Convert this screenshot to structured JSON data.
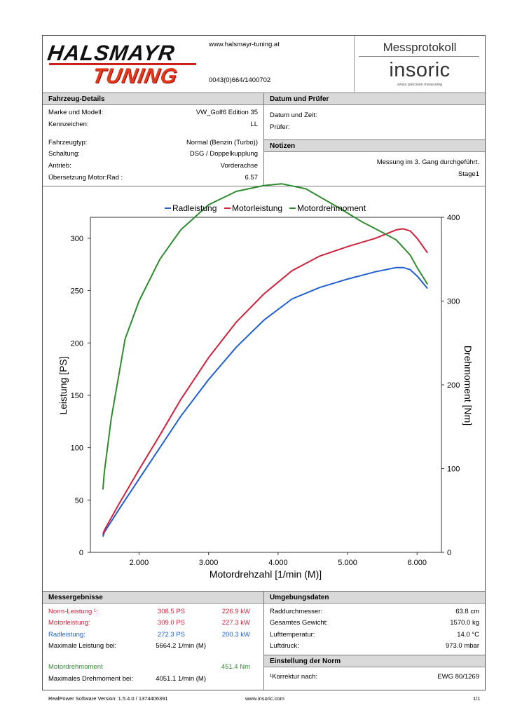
{
  "header": {
    "logo_line1": "HALSMAYR",
    "logo_line2": "TUNING",
    "website": "www.halsmayr-tuning.at",
    "phone": "0043(0)664/1400702",
    "protocol_title": "Messprotokoll",
    "brand": "insoric",
    "brand_tagline": "swiss precision measuring"
  },
  "vehicle": {
    "title": "Fahrzeug-Details",
    "rows": [
      {
        "label": "Marke und Modell:",
        "value": "VW_Golf6 Edition 35"
      },
      {
        "label": "Kennzeichen:",
        "value": "LL"
      },
      {
        "label": "Fahrzeugtyp:",
        "value": "Normal (Benzin (Turbo))"
      },
      {
        "label": "Schaltung:",
        "value": "DSG / Doppelkupplung"
      },
      {
        "label": "Antrieb:",
        "value": "Vorderachse"
      },
      {
        "label": "Übersetzung Motor:Rad :",
        "value": "6.57"
      }
    ]
  },
  "date_tester": {
    "title": "Datum und Prüfer",
    "date_label": "Datum und Zeit:",
    "tester_label": "Prüfer:"
  },
  "notes": {
    "title": "Notizen",
    "line1": "Messung im 3. Gang durchgeführt.",
    "line2": "Stage1"
  },
  "chart_data": {
    "type": "line",
    "xlabel": "Motordrehzahl [1/min (M)]",
    "ylabel": "Leistung [PS]",
    "y2label": "Drehmoment [Nm]",
    "xlim": [
      1300,
      6350
    ],
    "ylim": [
      0,
      320
    ],
    "y2lim": [
      0,
      400
    ],
    "xticks": [
      "2.000",
      "3.000",
      "4.000",
      "5.000",
      "6.000"
    ],
    "xtick_values": [
      2000,
      3000,
      4000,
      5000,
      6000
    ],
    "yticks": [
      "0",
      "50",
      "100",
      "150",
      "200",
      "250",
      "300"
    ],
    "yticks_values": [
      0,
      50,
      100,
      150,
      200,
      250,
      300
    ],
    "y2ticks": [
      "0",
      "100",
      "200",
      "300",
      "400"
    ],
    "y2ticks_values": [
      0,
      100,
      200,
      300,
      400
    ],
    "legend_position": "top",
    "series": [
      {
        "name": "Radleistung",
        "color": "#1f5fd0",
        "axis": "left",
        "x": [
          1480,
          1500,
          1700,
          2000,
          2300,
          2600,
          3000,
          3400,
          3800,
          4200,
          4600,
          5000,
          5400,
          5700,
          5800,
          5900,
          6000,
          6150
        ],
        "y": [
          15,
          19,
          40,
          70,
          100,
          130,
          165,
          196,
          222,
          242,
          253,
          261,
          268,
          272,
          272,
          270,
          264,
          252
        ]
      },
      {
        "name": "Motorleistung",
        "color": "#d0213c",
        "axis": "left",
        "x": [
          1480,
          1500,
          1700,
          2000,
          2300,
          2600,
          3000,
          3400,
          3800,
          4200,
          4600,
          5000,
          5400,
          5700,
          5800,
          5900,
          6000,
          6150
        ],
        "y": [
          17,
          21,
          45,
          79,
          112,
          146,
          186,
          220,
          247,
          269,
          283,
          292,
          300,
          308,
          309,
          307,
          300,
          286
        ]
      },
      {
        "name": "Motordrehmoment",
        "color": "#2e8b2e",
        "axis": "right",
        "x": [
          1480,
          1500,
          1600,
          1800,
          2000,
          2300,
          2600,
          3000,
          3400,
          3800,
          4050,
          4400,
          4800,
          5200,
          5500,
          5700,
          5900,
          6000,
          6150
        ],
        "y": [
          75,
          95,
          160,
          255,
          300,
          350,
          385,
          415,
          431,
          438,
          440,
          434,
          415,
          395,
          382,
          373,
          355,
          340,
          320
        ]
      }
    ]
  },
  "results": {
    "title": "Messergebnisse",
    "rows": [
      {
        "label": "Norm-Leistung ¹:",
        "ps": "308.5 PS",
        "kw": "226.9 kW",
        "color": "#d0213c"
      },
      {
        "label": "Motorleistung:",
        "ps": "309.0 PS",
        "kw": "227.3 kW",
        "color": "#d0213c"
      },
      {
        "label": "Radleistung:",
        "ps": "272.3 PS",
        "kw": "200.3 kW",
        "color": "#1f5fd0"
      }
    ],
    "max_power_label": "Maximale Leistung bei:",
    "max_power_value": "5664.2 1/min (M)",
    "torque_label": "Motordrehmoment",
    "torque_value": "451.4 Nm",
    "torque_color": "#2e8b2e",
    "max_torque_label": "Maximales Drehmoment bei:",
    "max_torque_value": "4051.1 1/min (M)"
  },
  "environment": {
    "title": "Umgebungsdaten",
    "rows": [
      {
        "label": "Raddurchmesser:",
        "value": "63.8 cm"
      },
      {
        "label": "Gesamtes Gewicht:",
        "value": "1570.0 kg"
      },
      {
        "label": "Lufttemperatur:",
        "value": "14.0 °C"
      },
      {
        "label": "Luftdruck:",
        "value": "973.0 mbar"
      }
    ]
  },
  "norm": {
    "title": "Einstellung der Norm",
    "label": "¹Korrektur nach:",
    "value": "EWG 80/1269"
  },
  "footer": {
    "software": "RealPower Software Version: 1.5.4.0 / 1374406391",
    "url": "www.insoric.com",
    "page": "1/1"
  }
}
